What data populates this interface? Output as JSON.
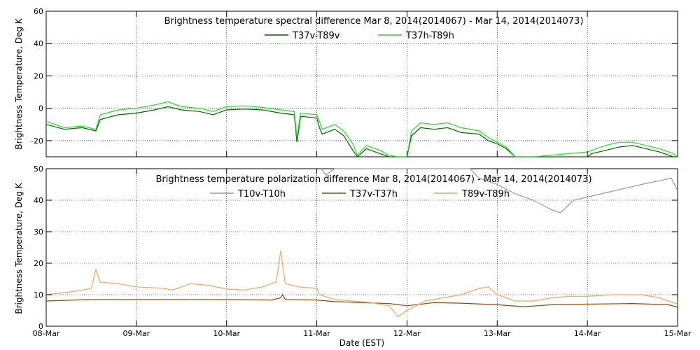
{
  "x_axis": {
    "ticks": [
      "08-Mar",
      "09-Mar",
      "10-Mar",
      "11-Mar",
      "12-Mar",
      "13-Mar",
      "14-Mar",
      "15-Mar"
    ],
    "xlabel": "Date (EST)",
    "xlim": [
      0,
      7
    ]
  },
  "chart_data": [
    {
      "type": "line",
      "title": "Brightness temperature spectral difference     Mar  8, 2014(2014067) - Mar 14, 2014(2014073)",
      "xlabel": "Date (EST)",
      "ylabel": "Brightness Temperature, Deg K",
      "ylim": [
        -30,
        60
      ],
      "yticks": [
        -20,
        0,
        20,
        40,
        60
      ],
      "grid": true,
      "legend_position": "top-center",
      "series": [
        {
          "name": "T37v-T89v",
          "color": "#006400",
          "points": [
            [
              0,
              -10
            ],
            [
              0.2,
              -13
            ],
            [
              0.4,
              -12
            ],
            [
              0.55,
              -14
            ],
            [
              0.6,
              -7
            ],
            [
              0.8,
              -4
            ],
            [
              1,
              -3
            ],
            [
              1.2,
              -1
            ],
            [
              1.35,
              1
            ],
            [
              1.5,
              -1
            ],
            [
              1.7,
              -2
            ],
            [
              1.85,
              -4
            ],
            [
              2,
              -1
            ],
            [
              2.2,
              -0.5
            ],
            [
              2.4,
              -1
            ],
            [
              2.6,
              -3
            ],
            [
              2.75,
              -4
            ],
            [
              2.78,
              -21
            ],
            [
              2.82,
              -5
            ],
            [
              3,
              -6
            ],
            [
              3.03,
              -12
            ],
            [
              3.06,
              -16
            ],
            [
              3.2,
              -13
            ],
            [
              3.3,
              -17
            ],
            [
              3.4,
              -26
            ],
            [
              3.45,
              -30
            ],
            [
              3.55,
              -25
            ],
            [
              3.7,
              -28
            ],
            [
              3.8,
              -30
            ],
            [
              3.9,
              -30
            ],
            [
              4,
              -30
            ],
            [
              4.05,
              -17
            ],
            [
              4.15,
              -12
            ],
            [
              4.3,
              -13
            ],
            [
              4.45,
              -12
            ],
            [
              4.6,
              -15
            ],
            [
              4.8,
              -16
            ],
            [
              4.9,
              -20
            ],
            [
              5,
              -22
            ],
            [
              5.1,
              -25
            ],
            [
              5.2,
              -30
            ],
            [
              5.4,
              -30
            ],
            [
              5.6,
              -30
            ],
            [
              5.8,
              -30
            ],
            [
              6,
              -30
            ],
            [
              6.05,
              -28
            ],
            [
              6.2,
              -26
            ],
            [
              6.35,
              -24
            ],
            [
              6.5,
              -23
            ],
            [
              6.65,
              -25
            ],
            [
              6.8,
              -27
            ],
            [
              6.95,
              -30
            ],
            [
              7,
              -30
            ]
          ]
        },
        {
          "name": "T37h-T89h",
          "color": "#22dd22",
          "points": [
            [
              0,
              -8
            ],
            [
              0.2,
              -12
            ],
            [
              0.4,
              -11
            ],
            [
              0.55,
              -13
            ],
            [
              0.6,
              -4
            ],
            [
              0.8,
              -1
            ],
            [
              1,
              0
            ],
            [
              1.2,
              2
            ],
            [
              1.35,
              4
            ],
            [
              1.5,
              1
            ],
            [
              1.7,
              0
            ],
            [
              1.85,
              -2
            ],
            [
              2,
              1
            ],
            [
              2.2,
              1.5
            ],
            [
              2.4,
              0.5
            ],
            [
              2.6,
              -1
            ],
            [
              2.75,
              -2
            ],
            [
              2.78,
              -18
            ],
            [
              2.82,
              -3
            ],
            [
              3,
              -4
            ],
            [
              3.03,
              -8
            ],
            [
              3.06,
              -13
            ],
            [
              3.2,
              -10
            ],
            [
              3.3,
              -14
            ],
            [
              3.4,
              -22
            ],
            [
              3.45,
              -29
            ],
            [
              3.55,
              -23
            ],
            [
              3.7,
              -26
            ],
            [
              3.8,
              -29
            ],
            [
              3.9,
              -30
            ],
            [
              4,
              -30
            ],
            [
              4.05,
              -14
            ],
            [
              4.15,
              -9
            ],
            [
              4.3,
              -10
            ],
            [
              4.45,
              -9
            ],
            [
              4.6,
              -12
            ],
            [
              4.8,
              -14
            ],
            [
              4.9,
              -18
            ],
            [
              5,
              -21
            ],
            [
              5.1,
              -24
            ],
            [
              5.2,
              -30
            ],
            [
              5.4,
              -30
            ],
            [
              5.6,
              -29
            ],
            [
              5.8,
              -28
            ],
            [
              6,
              -27
            ],
            [
              6.05,
              -26
            ],
            [
              6.2,
              -23
            ],
            [
              6.35,
              -21
            ],
            [
              6.5,
              -21
            ],
            [
              6.65,
              -23
            ],
            [
              6.8,
              -25
            ],
            [
              6.95,
              -28
            ],
            [
              7,
              -30
            ]
          ]
        }
      ]
    },
    {
      "type": "line",
      "title": "Brightness temperature polarization difference     Mar  8, 2014(2014067) - Mar 14, 2014(2014073)",
      "xlabel": "Date (EST)",
      "ylabel": "Brightness Temperature, Deg K",
      "ylim": [
        0,
        50
      ],
      "yticks": [
        0,
        10,
        20,
        30,
        40,
        50
      ],
      "grid": true,
      "legend_position": "top-center",
      "series": [
        {
          "name": "T10v-T10h",
          "color": "#999999",
          "points": [
            [
              3.05,
              50
            ],
            [
              3.1,
              48
            ],
            [
              3.2,
              50
            ],
            [
              4.7,
              50
            ],
            [
              4.8,
              47
            ],
            [
              5,
              45
            ],
            [
              5.2,
              42
            ],
            [
              5.4,
              40
            ],
            [
              5.6,
              37
            ],
            [
              5.7,
              36
            ],
            [
              5.85,
              40
            ],
            [
              6,
              41
            ],
            [
              6.3,
              43
            ],
            [
              6.6,
              45
            ],
            [
              6.85,
              46.5
            ],
            [
              6.93,
              47
            ],
            [
              7,
              43
            ]
          ]
        },
        {
          "name": "T37v-T37h",
          "color": "#8b4513",
          "points": [
            [
              0,
              8
            ],
            [
              0.5,
              8.5
            ],
            [
              1,
              8.5
            ],
            [
              1.5,
              8.5
            ],
            [
              2,
              8.5
            ],
            [
              2.5,
              8.3
            ],
            [
              2.6,
              9
            ],
            [
              2.62,
              10
            ],
            [
              2.65,
              8.5
            ],
            [
              3,
              8.3
            ],
            [
              3.2,
              7.8
            ],
            [
              3.5,
              7.5
            ],
            [
              3.8,
              7.2
            ],
            [
              4,
              6.5
            ],
            [
              4.3,
              7.5
            ],
            [
              4.6,
              7.3
            ],
            [
              5,
              6.8
            ],
            [
              5.3,
              6.2
            ],
            [
              5.6,
              6.8
            ],
            [
              6,
              7
            ],
            [
              6.5,
              7.2
            ],
            [
              6.9,
              6.8
            ],
            [
              7,
              6
            ]
          ]
        },
        {
          "name": "T89v-T89h",
          "color": "#f4a460",
          "points": [
            [
              0,
              10
            ],
            [
              0.3,
              11
            ],
            [
              0.5,
              12
            ],
            [
              0.55,
              18
            ],
            [
              0.6,
              14
            ],
            [
              0.8,
              13.5
            ],
            [
              1,
              12.5
            ],
            [
              1.3,
              12
            ],
            [
              1.4,
              11.5
            ],
            [
              1.6,
              13.5
            ],
            [
              1.8,
              13
            ],
            [
              2,
              11.8
            ],
            [
              2.2,
              11.5
            ],
            [
              2.4,
              12.5
            ],
            [
              2.55,
              14
            ],
            [
              2.6,
              24
            ],
            [
              2.65,
              13.5
            ],
            [
              2.8,
              12.5
            ],
            [
              3,
              12
            ],
            [
              3.03,
              10
            ],
            [
              3.2,
              8.5
            ],
            [
              3.4,
              8
            ],
            [
              3.6,
              7.5
            ],
            [
              3.8,
              6.5
            ],
            [
              3.9,
              3
            ],
            [
              4,
              5
            ],
            [
              4.2,
              8
            ],
            [
              4.4,
              9
            ],
            [
              4.6,
              10
            ],
            [
              4.8,
              12
            ],
            [
              4.9,
              12.5
            ],
            [
              5,
              10
            ],
            [
              5.2,
              8
            ],
            [
              5.4,
              8
            ],
            [
              5.6,
              9
            ],
            [
              5.8,
              9.5
            ],
            [
              6,
              9.5
            ],
            [
              6.3,
              10
            ],
            [
              6.6,
              10
            ],
            [
              6.8,
              9
            ],
            [
              7,
              7
            ]
          ]
        }
      ]
    }
  ]
}
